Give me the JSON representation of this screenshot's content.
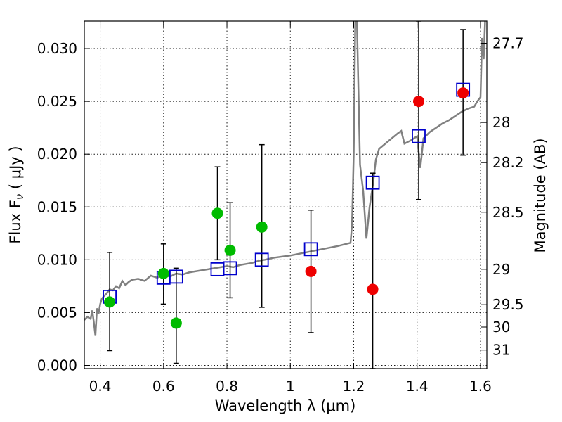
{
  "chart_data": {
    "type": "scatter",
    "title": "",
    "xlabel": "Wavelength  λ (μm)",
    "ylabel": "Flux  F",
    "ylabel_sub": "ν",
    "ylabel_unit": "  ( μJy )",
    "y2label": "Magnitude (AB)",
    "xlim": [
      0.35,
      1.62
    ],
    "ylim": [
      -0.0003,
      0.0326
    ],
    "grid": true,
    "x_ticks": [
      {
        "value": 0.4,
        "label": "0.4"
      },
      {
        "value": 0.6,
        "label": "0.6"
      },
      {
        "value": 0.8,
        "label": "0.8"
      },
      {
        "value": 1.0,
        "label": "1"
      },
      {
        "value": 1.2,
        "label": "1.2"
      },
      {
        "value": 1.4,
        "label": "1.4"
      },
      {
        "value": 1.6,
        "label": "1.6"
      }
    ],
    "y_ticks": [
      {
        "value": 0.0,
        "label": "0.000"
      },
      {
        "value": 0.005,
        "label": "0.005"
      },
      {
        "value": 0.01,
        "label": "0.010"
      },
      {
        "value": 0.015,
        "label": "0.015"
      },
      {
        "value": 0.02,
        "label": "0.020"
      },
      {
        "value": 0.025,
        "label": "0.025"
      },
      {
        "value": 0.03,
        "label": "0.030"
      }
    ],
    "y2_ticks": [
      {
        "flux": 0.0305,
        "label": "27.7"
      },
      {
        "flux": 0.023,
        "label": "28"
      },
      {
        "flux": 0.0192,
        "label": "28.2"
      },
      {
        "flux": 0.0145,
        "label": "28.5"
      },
      {
        "flux": 0.0091,
        "label": "29"
      },
      {
        "flux": 0.00575,
        "label": "29.5"
      },
      {
        "flux": 0.00363,
        "label": "30"
      },
      {
        "flux": 0.00145,
        "label": "31"
      }
    ],
    "colors": {
      "spectrum": "#808080",
      "model_marker": "#0000cc",
      "detection": "#00bb00",
      "upper": "#ee0000",
      "errorbar": "#000000"
    },
    "spectrum": {
      "x": [
        0.35,
        0.36,
        0.37,
        0.375,
        0.38,
        0.385,
        0.39,
        0.395,
        0.4,
        0.405,
        0.41,
        0.42,
        0.43,
        0.44,
        0.45,
        0.46,
        0.47,
        0.48,
        0.49,
        0.5,
        0.52,
        0.54,
        0.56,
        0.58,
        0.6,
        0.62,
        0.64,
        0.66,
        0.68,
        0.7,
        0.72,
        0.74,
        0.76,
        0.78,
        0.8,
        0.82,
        0.84,
        0.86,
        0.88,
        0.9,
        0.92,
        0.95,
        1.0,
        1.05,
        1.1,
        1.15,
        1.19,
        1.195,
        1.2,
        1.205,
        1.21,
        1.22,
        1.23,
        1.24,
        1.25,
        1.26,
        1.27,
        1.28,
        1.3,
        1.32,
        1.34,
        1.35,
        1.36,
        1.38,
        1.4,
        1.41,
        1.42,
        1.44,
        1.46,
        1.48,
        1.5,
        1.52,
        1.54,
        1.56,
        1.58,
        1.59,
        1.6,
        1.605,
        1.61,
        1.615,
        1.62
      ],
      "y": [
        0.0043,
        0.0046,
        0.0044,
        0.0052,
        0.0041,
        0.0028,
        0.0054,
        0.0049,
        0.0058,
        0.0063,
        0.0065,
        0.0068,
        0.0072,
        0.0071,
        0.0075,
        0.0073,
        0.008,
        0.0076,
        0.0079,
        0.0081,
        0.0082,
        0.008,
        0.0085,
        0.0083,
        0.0086,
        0.0084,
        0.0087,
        0.0086,
        0.0088,
        0.0089,
        0.009,
        0.0091,
        0.0092,
        0.0093,
        0.0094,
        0.0093,
        0.0095,
        0.0096,
        0.0097,
        0.0099,
        0.01,
        0.0102,
        0.0104,
        0.0107,
        0.011,
        0.0113,
        0.0116,
        0.0135,
        0.02,
        0.033,
        0.033,
        0.019,
        0.0165,
        0.012,
        0.015,
        0.017,
        0.0195,
        0.0205,
        0.021,
        0.0215,
        0.022,
        0.0222,
        0.021,
        0.0213,
        0.0217,
        0.0187,
        0.0215,
        0.0221,
        0.0225,
        0.0229,
        0.0232,
        0.0236,
        0.024,
        0.0243,
        0.0245,
        0.025,
        0.0254,
        0.031,
        0.029,
        0.033,
        0.033
      ]
    },
    "model_points": {
      "x": [
        0.43,
        0.6,
        0.64,
        0.77,
        0.81,
        0.91,
        1.065,
        1.26,
        1.405,
        1.545
      ],
      "y": [
        0.0065,
        0.0083,
        0.0084,
        0.0091,
        0.0092,
        0.01,
        0.011,
        0.0173,
        0.0217,
        0.0261
      ]
    },
    "detections": {
      "x": [
        0.43,
        0.6,
        0.64,
        0.77,
        0.81,
        0.91
      ],
      "y": [
        0.006,
        0.0087,
        0.004,
        0.0144,
        0.0109,
        0.0131
      ],
      "yerr_low": [
        0.0014,
        0.0058,
        0.0002,
        0.01,
        0.0064,
        0.0055
      ],
      "yerr_high": [
        0.0107,
        0.0115,
        0.0092,
        0.0188,
        0.0154,
        0.0209
      ]
    },
    "upper_limits": {
      "x": [
        1.065,
        1.26,
        1.405,
        1.545
      ],
      "y": [
        0.0089,
        0.0072,
        0.025,
        0.0258
      ],
      "yerr_low": [
        0.0031,
        -0.0003,
        0.0157,
        0.0199
      ],
      "yerr_high": [
        0.0147,
        0.0182,
        0.0326,
        0.0318
      ]
    }
  }
}
